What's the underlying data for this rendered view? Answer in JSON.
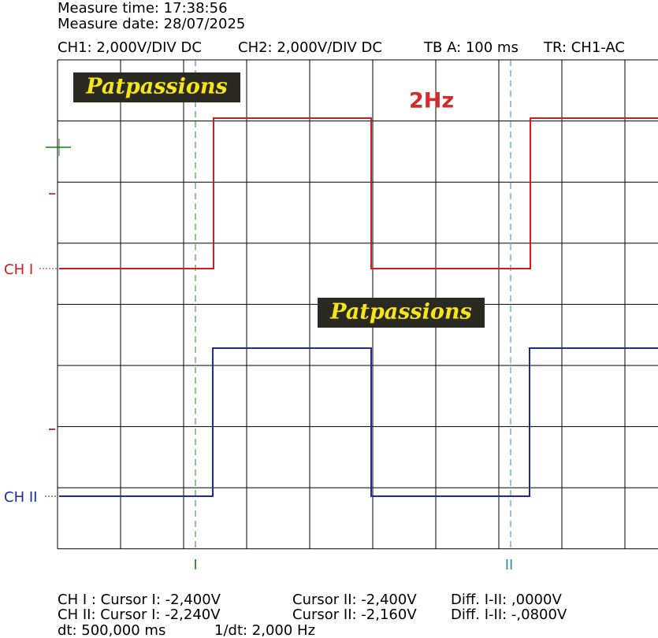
{
  "header": {
    "measure_time": "Measure time: 17:38:56",
    "measure_date": "Measure date: 28/07/2025",
    "settings": [
      "CH1: 2,000V/DIV DC",
      "CH2: 2,000V/DIV DC",
      "TB A: 100 ms",
      "TR: CH1-AC"
    ]
  },
  "screen": {
    "logo": "Patpassions",
    "annotation": "2Hz",
    "channel_1": "CH I",
    "channel_2": "CH II",
    "cursor_1": "I",
    "cursor_2": "II"
  },
  "footer": {
    "rows": [
      [
        "CH I :  Cursor I: -2,400V",
        "Cursor II: -2,400V",
        "Diff. I-II: ,0000V"
      ],
      [
        "CH II:  Cursor I: -2,240V",
        "Cursor II: -2,160V",
        "Diff. I-II: -,0800V"
      ],
      [
        "dt: 500,000 ms",
        "1/dt: 2,000 Hz"
      ]
    ]
  }
}
